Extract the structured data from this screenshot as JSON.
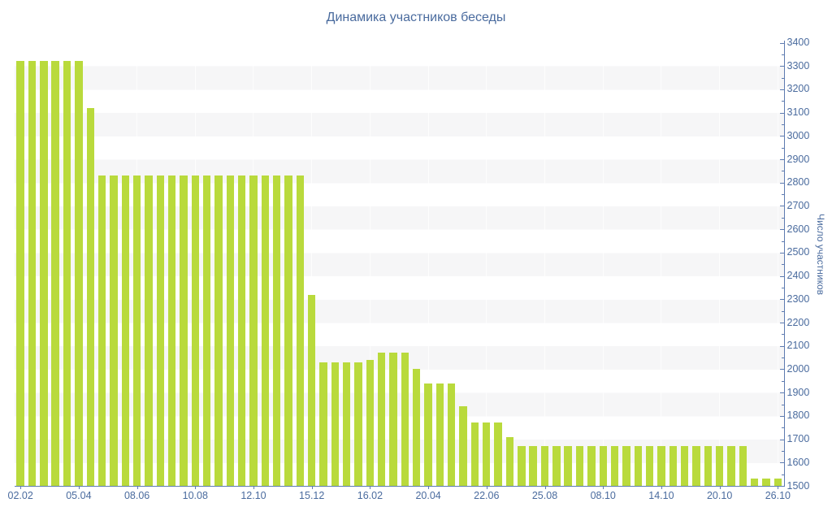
{
  "title": "Динамика участников беседы",
  "y_axis_title": "Число участников",
  "colors": {
    "bar": "#b9da3c",
    "text": "#4a6b9e",
    "axis_line": "#5d7bb0",
    "stripe": "#f6f6f7",
    "vgrid": "rgba(255,255,255,0.75)",
    "background": "#ffffff"
  },
  "chart_data": {
    "type": "bar",
    "title": "Динамика участников беседы",
    "xlabel": "",
    "ylabel": "Число участников",
    "ylim": [
      1500,
      3400
    ],
    "y_tick_step": 100,
    "y_minor_tick_step": 50,
    "grid": "horizontal-stripes",
    "legend": false,
    "x_tick_labels": [
      "02.02",
      "05.04",
      "08.06",
      "10.08",
      "12.10",
      "15.12",
      "16.02",
      "20.04",
      "22.06",
      "25.08",
      "08.10",
      "14.10",
      "20.10",
      "26.10"
    ],
    "x_label_every": 5,
    "values": [
      3320,
      3320,
      3320,
      3320,
      3320,
      3320,
      3120,
      2830,
      2830,
      2830,
      2830,
      2830,
      2830,
      2830,
      2830,
      2830,
      2830,
      2830,
      2830,
      2830,
      2830,
      2830,
      2830,
      2830,
      2830,
      2320,
      2030,
      2030,
      2030,
      2030,
      2040,
      2070,
      2070,
      2070,
      2000,
      1940,
      1940,
      1940,
      1840,
      1770,
      1770,
      1770,
      1710,
      1670,
      1670,
      1670,
      1670,
      1670,
      1670,
      1670,
      1670,
      1670,
      1670,
      1670,
      1670,
      1670,
      1670,
      1670,
      1670,
      1670,
      1670,
      1670,
      1670,
      1530,
      1530,
      1530
    ]
  },
  "y_tick_values": [
    1500,
    1600,
    1700,
    1800,
    1900,
    2000,
    2100,
    2200,
    2300,
    2400,
    2500,
    2600,
    2700,
    2800,
    2900,
    3000,
    3100,
    3200,
    3300,
    3400
  ]
}
